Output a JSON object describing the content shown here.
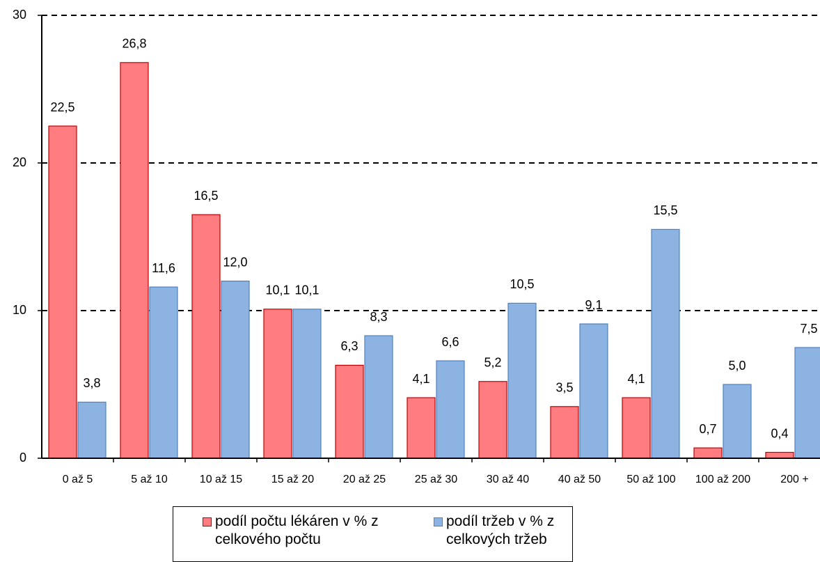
{
  "chart_data": {
    "type": "bar",
    "categories": [
      "0 až 5",
      "5 až 10",
      "10 až 15",
      "15 až 20",
      "20 až 25",
      "25 až 30",
      "30 až 40",
      "40 až 50",
      "50 až 100",
      "100 až 200",
      "200 +"
    ],
    "series": [
      {
        "name": "podíl počtu lékáren v % z celkového počtu",
        "color": "#ff7c80",
        "values": [
          22.5,
          26.8,
          16.5,
          10.1,
          6.3,
          4.1,
          5.2,
          3.5,
          4.1,
          0.7,
          0.4
        ],
        "value_labels": [
          "22,5",
          "26,8",
          "16,5",
          "10,1",
          "6,3",
          "4,1",
          "5,2",
          "3,5",
          "4,1",
          "0,7",
          "0,4"
        ]
      },
      {
        "name": "podíl tržeb v % z celkových tržeb",
        "color": "#8db3e2",
        "values": [
          3.8,
          11.6,
          12.0,
          10.1,
          8.3,
          6.6,
          10.5,
          9.1,
          15.5,
          5.0,
          7.5
        ],
        "value_labels": [
          "3,8",
          "11,6",
          "12,0",
          "10,1",
          "8,3",
          "6,6",
          "10,5",
          "9,1",
          "15,5",
          "5,0",
          "7,5"
        ]
      }
    ],
    "ylim": [
      0,
      30
    ],
    "yticks": [
      0,
      10,
      20,
      30
    ],
    "grid": true,
    "legend": "bottom"
  }
}
